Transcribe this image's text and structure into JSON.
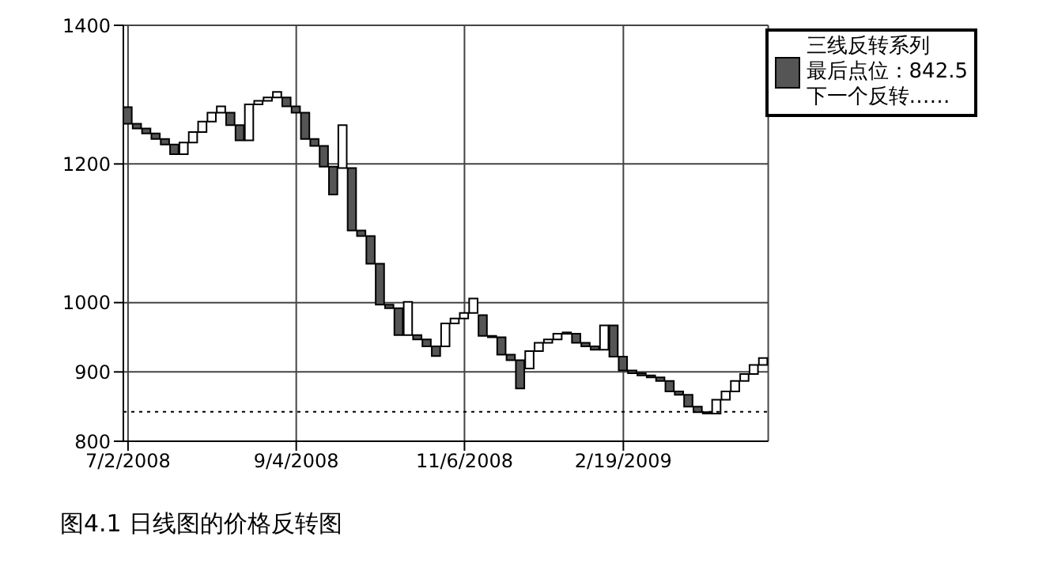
{
  "chart_data": {
    "type": "bar",
    "title": "图4.1 日线图的价格反转图",
    "categories": [
      "7/2/2008",
      null,
      null,
      null,
      null,
      null,
      null,
      null,
      null,
      null,
      null,
      null,
      null,
      null,
      null,
      null,
      null,
      null,
      "9/4/2008",
      null,
      null,
      null,
      null,
      null,
      null,
      null,
      null,
      null,
      null,
      null,
      null,
      null,
      null,
      null,
      null,
      null,
      "11/6/2008",
      null,
      null,
      null,
      null,
      null,
      null,
      null,
      null,
      null,
      null,
      null,
      null,
      null,
      null,
      null,
      null,
      "2/19/2009",
      null,
      null,
      null,
      null,
      null,
      null,
      null,
      null,
      null,
      null,
      null,
      null,
      null,
      null,
      null
    ],
    "series": [
      {
        "name": "三线反转系列",
        "color": "#555555",
        "base": [
          1258,
          1251,
          1244,
          1236,
          1228,
          1214,
          1214,
          1231,
          1246,
          1261,
          1274,
          1256,
          1234,
          1234,
          1286,
          1291,
          1296,
          1283,
          1274,
          1236,
          1226,
          1196,
          1156,
          1194,
          1104,
          1096,
          1056,
          997,
          992,
          953,
          953,
          947,
          937,
          923,
          937,
          970,
          977,
          985,
          952,
          950,
          925,
          917,
          876,
          905,
          930,
          942,
          947,
          955,
          942,
          937,
          932,
          932,
          922,
          902,
          898,
          895,
          892,
          887,
          872,
          867,
          850,
          842,
          840,
          840,
          860,
          872,
          887,
          897,
          910
        ],
        "values": [
          24,
          7,
          7,
          8,
          8,
          14,
          17,
          15,
          15,
          13,
          9,
          18,
          22,
          52,
          5,
          5,
          8,
          13,
          9,
          38,
          10,
          30,
          40,
          62,
          90,
          8,
          40,
          59,
          5,
          39,
          48,
          6,
          10,
          14,
          33,
          7,
          8,
          21,
          30,
          2,
          25,
          8,
          41,
          25,
          12,
          5,
          8,
          2,
          13,
          5,
          5,
          35,
          45,
          20,
          4,
          3,
          3,
          5,
          15,
          5,
          17,
          8,
          2,
          20,
          12,
          15,
          10,
          13,
          10
        ],
        "colors": [
          "#555555",
          "#555555",
          "#555555",
          "#555555",
          "#555555",
          "#555555",
          "#ffffff",
          "#ffffff",
          "#ffffff",
          "#ffffff",
          "#ffffff",
          "#555555",
          "#555555",
          "#ffffff",
          "#ffffff",
          "#ffffff",
          "#ffffff",
          "#555555",
          "#555555",
          "#555555",
          "#555555",
          "#555555",
          "#555555",
          "#ffffff",
          "#555555",
          "#555555",
          "#555555",
          "#555555",
          "#555555",
          "#555555",
          "#ffffff",
          "#555555",
          "#555555",
          "#555555",
          "#ffffff",
          "#ffffff",
          "#ffffff",
          "#ffffff",
          "#555555",
          "#555555",
          "#555555",
          "#555555",
          "#555555",
          "#ffffff",
          "#ffffff",
          "#ffffff",
          "#ffffff",
          "#ffffff",
          "#555555",
          "#555555",
          "#555555",
          "#ffffff",
          "#555555",
          "#555555",
          "#555555",
          "#555555",
          "#555555",
          "#555555",
          "#555555",
          "#555555",
          "#555555",
          "#555555",
          "#555555",
          "#ffffff",
          "#ffffff",
          "#ffffff",
          "#ffffff",
          "#ffffff",
          "#ffffff"
        ]
      }
    ],
    "ylim": [
      800,
      1400
    ],
    "yticks": [
      800,
      900,
      1000,
      1200,
      1400
    ],
    "grid": true,
    "legend": "top right",
    "ref_lines": [
      {
        "axis": "y",
        "value": 842.5,
        "line_style": "dotted"
      }
    ],
    "annotations": [
      "最后点位：842.5",
      "下一个反转……"
    ]
  }
}
